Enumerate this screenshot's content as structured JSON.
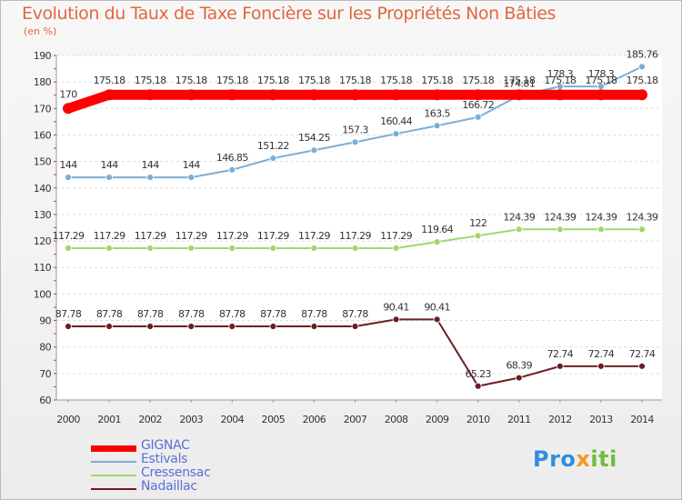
{
  "title": "Evolution du Taux de Taxe Foncière sur les Propriétés Non Bâties",
  "unit_label": "(en %)",
  "brand": {
    "part1": "Pro",
    "part2": "x",
    "part3": "iti"
  },
  "chart_data": {
    "type": "line",
    "title": "Evolution du Taux de Taxe Foncière sur les Propriétés Non Bâties",
    "ylabel": "(en %)",
    "xlabel": "",
    "ylim": [
      60,
      190
    ],
    "yticks": [
      60,
      70,
      80,
      90,
      100,
      110,
      120,
      130,
      140,
      150,
      160,
      170,
      180,
      190
    ],
    "x": [
      "2000",
      "2001",
      "2002",
      "2003",
      "2004",
      "2005",
      "2006",
      "2007",
      "2008",
      "2009",
      "2010",
      "2011",
      "2012",
      "2013",
      "2014"
    ],
    "series": [
      {
        "name": "GIGNAC",
        "color": "#ff0000",
        "values": [
          170,
          175.18,
          175.18,
          175.18,
          175.18,
          175.18,
          175.18,
          175.18,
          175.18,
          175.18,
          175.18,
          175.18,
          175.18,
          175.18,
          175.18
        ],
        "labels": [
          "170",
          "175.18",
          "175.18",
          "175.18",
          "175.18",
          "175.18",
          "175.18",
          "175.18",
          "175.18",
          "175.18",
          "175.18",
          "175.18",
          "175.18",
          "175.18",
          "175.18"
        ]
      },
      {
        "name": "Estivals",
        "color": "#7aaed6",
        "values": [
          144,
          144,
          144,
          144,
          146.85,
          151.22,
          154.25,
          157.3,
          160.44,
          163.5,
          166.72,
          174.81,
          178.3,
          178.3,
          185.76
        ],
        "labels": [
          "144",
          "144",
          "144",
          "144",
          "146.85",
          "151.22",
          "154.25",
          "157.3",
          "160.44",
          "163.5",
          "166.72",
          "174.81",
          "178.3",
          "178.3",
          "185.76"
        ]
      },
      {
        "name": "Cressensac",
        "color": "#9ed86e",
        "values": [
          117.29,
          117.29,
          117.29,
          117.29,
          117.29,
          117.29,
          117.29,
          117.29,
          117.29,
          119.64,
          122,
          124.39,
          124.39,
          124.39,
          124.39
        ],
        "labels": [
          "117.29",
          "117.29",
          "117.29",
          "117.29",
          "117.29",
          "117.29",
          "117.29",
          "117.29",
          "117.29",
          "119.64",
          "122",
          "124.39",
          "124.39",
          "124.39",
          "124.39"
        ]
      },
      {
        "name": "Nadaillac",
        "color": "#6b1e22",
        "values": [
          87.78,
          87.78,
          87.78,
          87.78,
          87.78,
          87.78,
          87.78,
          87.78,
          90.41,
          90.41,
          65.23,
          68.39,
          72.74,
          72.74,
          72.74
        ],
        "labels": [
          "87.78",
          "87.78",
          "87.78",
          "87.78",
          "87.78",
          "87.78",
          "87.78",
          "87.78",
          "90.41",
          "90.41",
          "65.23",
          "68.39",
          "72.74",
          "72.74",
          "72.74"
        ]
      }
    ]
  }
}
